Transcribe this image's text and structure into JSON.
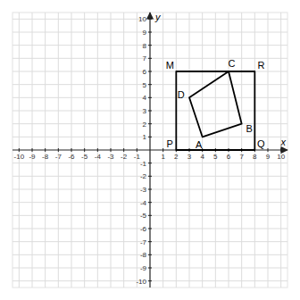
{
  "chart_data": {
    "type": "polygon",
    "xlabel": "x",
    "ylabel": "y",
    "xlim": [
      -10.5,
      10.5
    ],
    "ylim": [
      -10.5,
      10.5
    ],
    "xticks": [
      -10,
      -9,
      -8,
      -7,
      -6,
      -5,
      -4,
      -3,
      -2,
      -1,
      1,
      2,
      3,
      4,
      5,
      6,
      7,
      8,
      9,
      10
    ],
    "yticks": [
      -10,
      -9,
      -8,
      -7,
      -6,
      -5,
      -4,
      -3,
      -2,
      -1,
      1,
      2,
      3,
      4,
      5,
      6,
      7,
      8,
      9,
      10
    ],
    "grid": true,
    "series": [
      {
        "x": [
          2,
          8,
          8,
          2
        ],
        "values": [
          0,
          0,
          6,
          6
        ],
        "labels": [
          "P",
          "Q",
          "R",
          "M"
        ],
        "color": "#000000"
      },
      {
        "x": [
          4,
          7,
          6,
          3
        ],
        "values": [
          1,
          2,
          6,
          4
        ],
        "labels": [
          "A",
          "B",
          "C",
          "D"
        ],
        "color": "#000000"
      }
    ]
  }
}
